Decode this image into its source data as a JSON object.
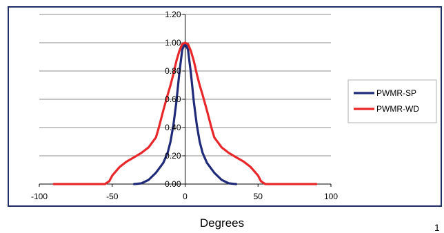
{
  "chart_data": {
    "type": "line",
    "title": "",
    "xlabel": "Degrees",
    "ylabel": "",
    "xlim": [
      -100,
      100
    ],
    "ylim": [
      0,
      1.2
    ],
    "x_ticks": [
      "-100",
      "-50",
      "0",
      "50",
      "100"
    ],
    "y_ticks": [
      "0.00",
      "0.20",
      "0.40",
      "0.60",
      "0.80",
      "1.00",
      "1.20"
    ],
    "grid": "horizontal",
    "legend_position": "right",
    "series": [
      {
        "name": "PWMR-SP",
        "color": "#1f2a78",
        "x": [
          -35,
          -30,
          -25,
          -20,
          -15,
          -12,
          -10,
          -8,
          -6,
          -4,
          -2,
          0,
          2,
          4,
          6,
          8,
          10,
          12,
          15,
          20,
          25,
          30,
          35
        ],
        "y": [
          0.0,
          0.005,
          0.03,
          0.08,
          0.15,
          0.22,
          0.3,
          0.42,
          0.58,
          0.78,
          0.95,
          1.0,
          0.95,
          0.78,
          0.58,
          0.42,
          0.3,
          0.22,
          0.15,
          0.08,
          0.03,
          0.005,
          0.0
        ]
      },
      {
        "name": "PWMR-WD",
        "color": "#e8272a",
        "x": [
          -90,
          -55,
          -52,
          -50,
          -45,
          -40,
          -35,
          -30,
          -25,
          -20,
          -18,
          -15,
          -12,
          -10,
          -8,
          -6,
          -4,
          -2,
          0,
          2,
          4,
          6,
          8,
          10,
          12,
          15,
          18,
          20,
          25,
          30,
          35,
          40,
          45,
          50,
          52,
          55,
          90
        ],
        "y": [
          0.0,
          0.0,
          0.02,
          0.06,
          0.12,
          0.16,
          0.19,
          0.22,
          0.26,
          0.33,
          0.4,
          0.52,
          0.63,
          0.7,
          0.78,
          0.87,
          0.94,
          0.99,
          1.0,
          0.99,
          0.94,
          0.87,
          0.78,
          0.7,
          0.63,
          0.52,
          0.4,
          0.33,
          0.26,
          0.22,
          0.19,
          0.16,
          0.12,
          0.06,
          0.02,
          0.0,
          0.0
        ]
      }
    ]
  },
  "page_number": "1"
}
